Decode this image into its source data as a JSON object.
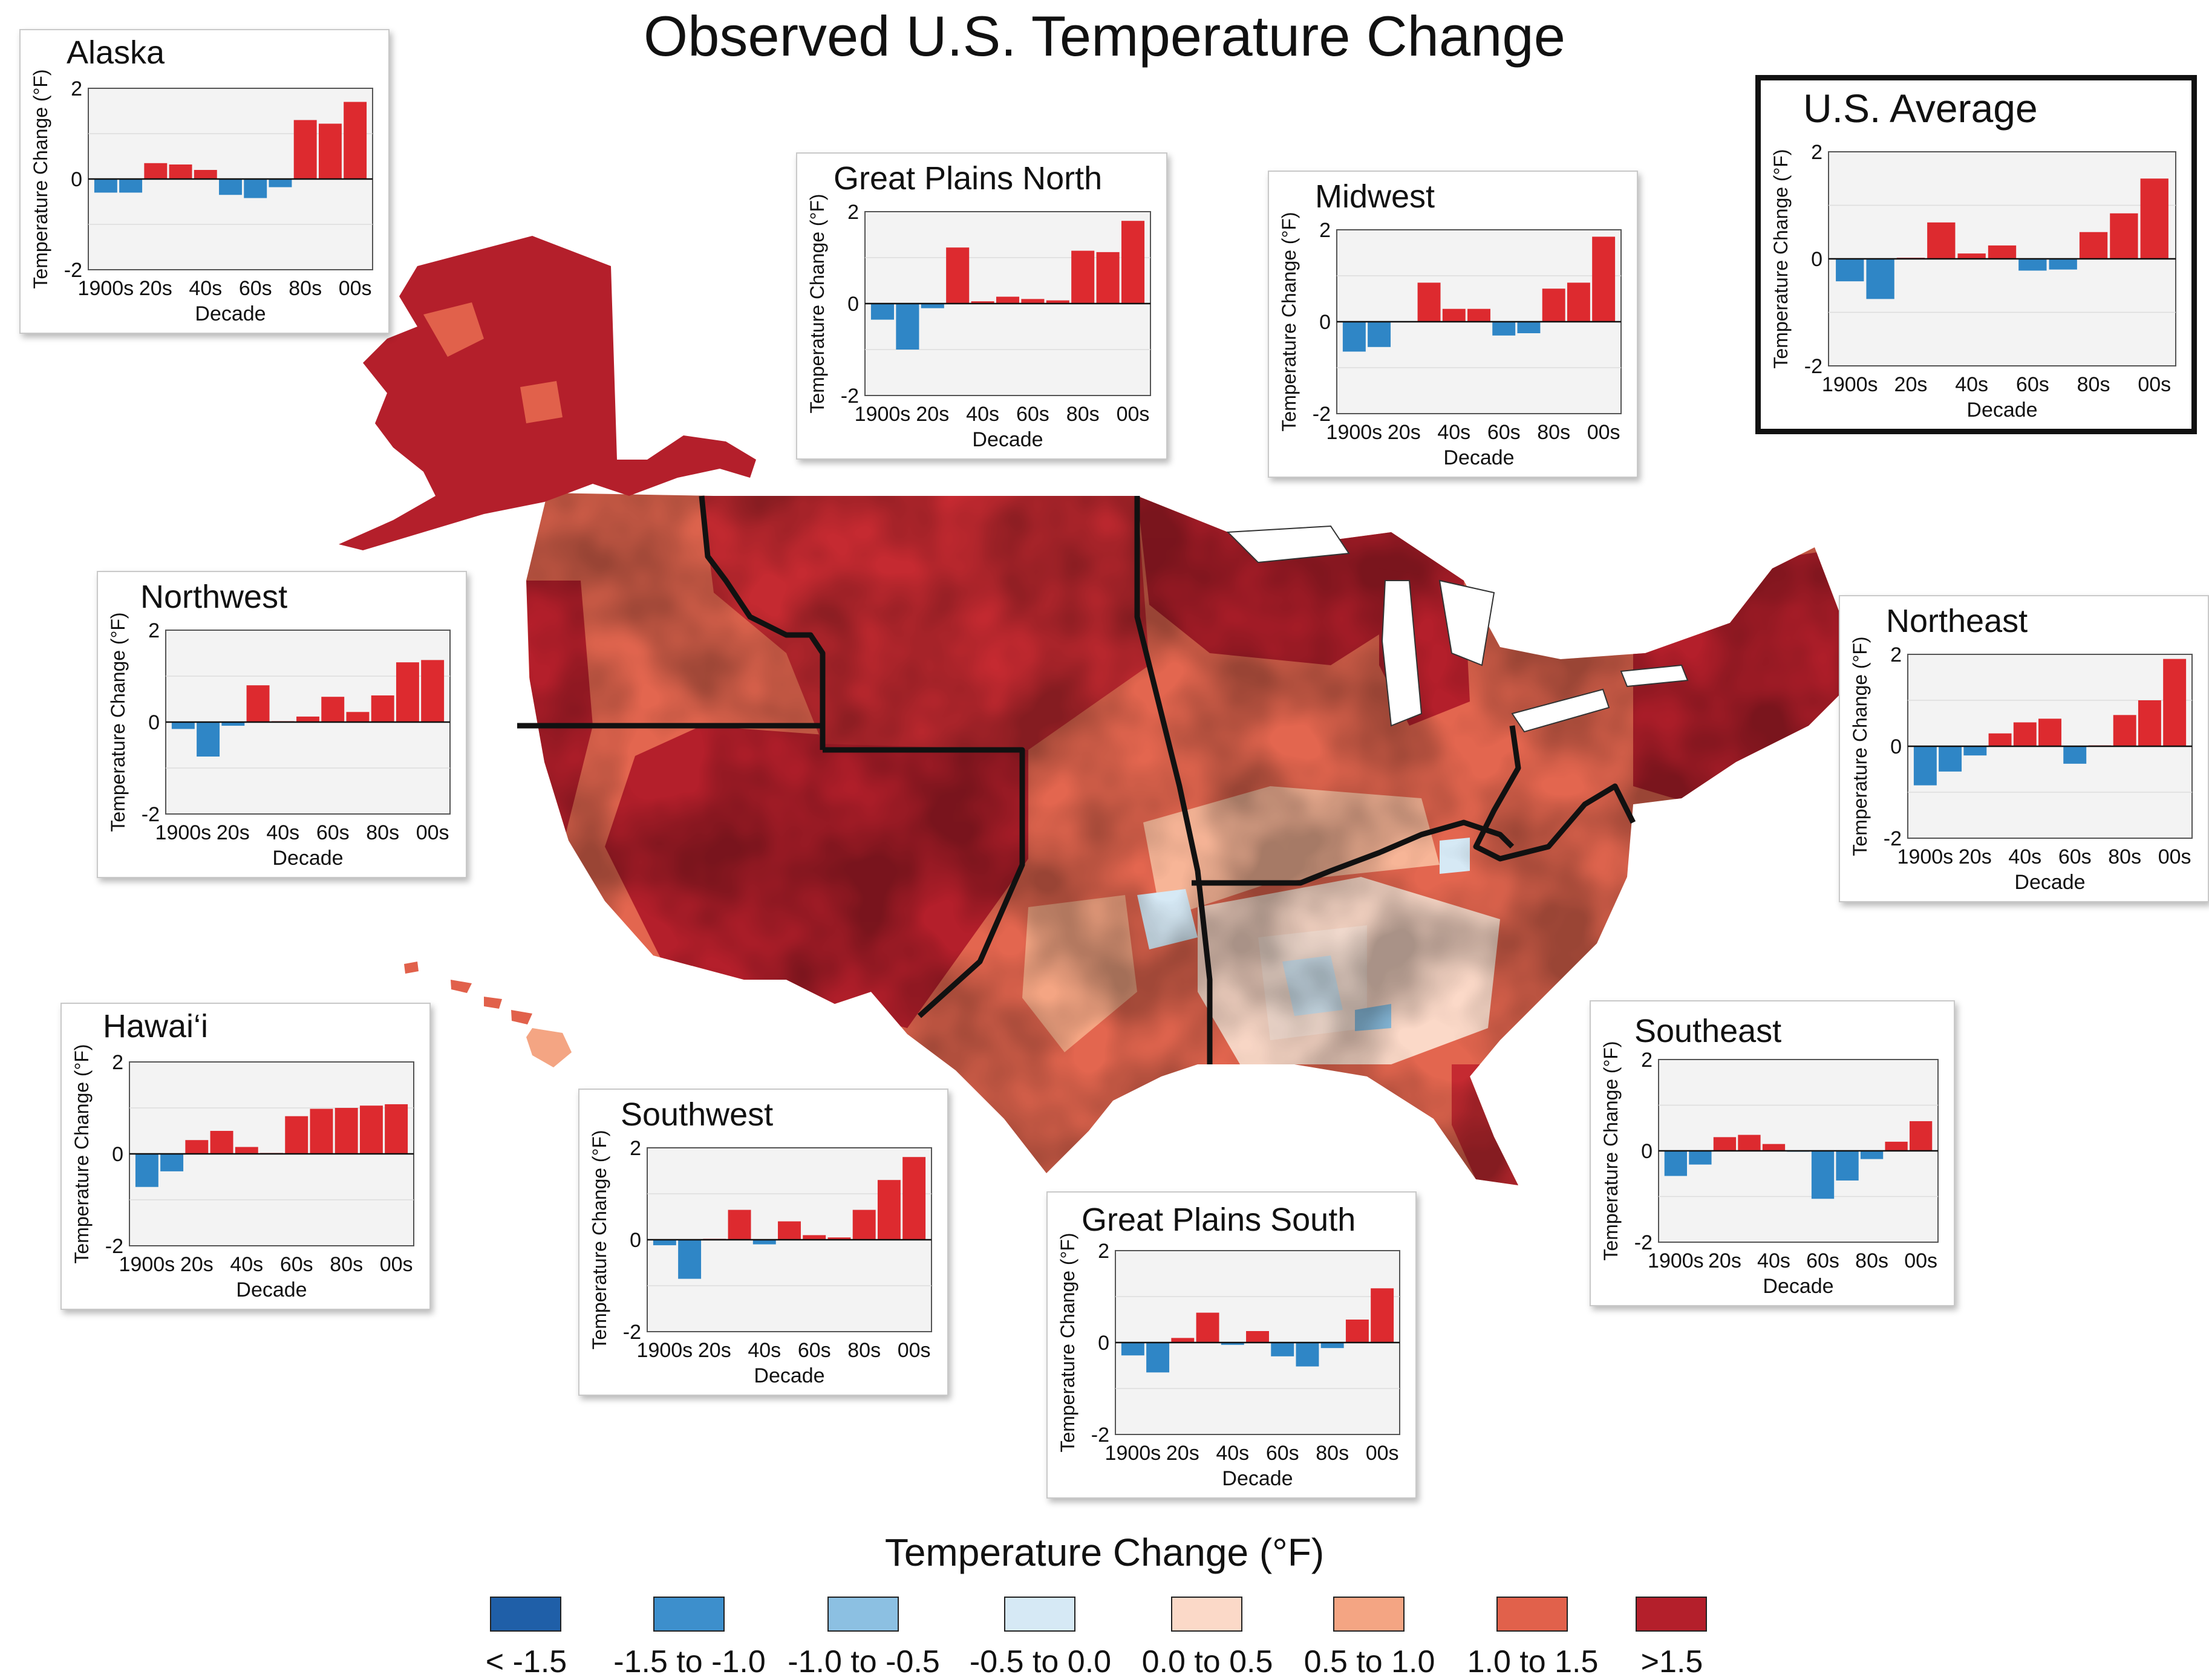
{
  "title": "Observed U.S. Temperature Change",
  "legend": {
    "title": "Temperature Change (°F)",
    "items": [
      {
        "label": "< -1.5",
        "color": "#1f5fa8"
      },
      {
        "label": "-1.5 to -1.0",
        "color": "#3d8fcc"
      },
      {
        "label": "-1.0 to -0.5",
        "color": "#8cc0e2"
      },
      {
        "label": "-0.5 to 0.0",
        "color": "#d6e9f5"
      },
      {
        "label": "0.0 to 0.5",
        "color": "#fbd9c8"
      },
      {
        "label": "0.5 to 1.0",
        "color": "#f4a583"
      },
      {
        "label": "1.0 to 1.5",
        "color": "#e1614b"
      },
      {
        "label": ">1.5",
        "color": "#b41f2b"
      }
    ]
  },
  "colors": {
    "warm": "#dd2a2f",
    "cool": "#2f86c6",
    "plot_bg": "#f3f3f3"
  },
  "chart_data": [
    {
      "type": "bar",
      "title": "Alaska",
      "categories": [
        "1900s",
        "10s",
        "20s",
        "30s",
        "40s",
        "50s",
        "60s",
        "70s",
        "80s",
        "90s",
        "00s"
      ],
      "tick_labels": [
        "1900s",
        "20s",
        "40s",
        "60s",
        "80s",
        "00s"
      ],
      "values": [
        -0.3,
        -0.3,
        0.35,
        0.32,
        0.2,
        -0.35,
        -0.42,
        -0.18,
        1.3,
        1.22,
        1.7
      ],
      "xlabel": "Decade",
      "ylabel": "Temperature Change (°F)",
      "ylim": [
        -2,
        2
      ],
      "yticks": [
        "2",
        "0",
        "-2"
      ]
    },
    {
      "type": "bar",
      "title": "Great Plains North",
      "categories": [
        "1900s",
        "10s",
        "20s",
        "30s",
        "40s",
        "50s",
        "60s",
        "70s",
        "80s",
        "90s",
        "00s"
      ],
      "tick_labels": [
        "1900s",
        "20s",
        "40s",
        "60s",
        "80s",
        "00s"
      ],
      "values": [
        -0.35,
        -1.0,
        -0.1,
        1.22,
        0.05,
        0.15,
        0.1,
        0.07,
        1.15,
        1.12,
        1.8
      ],
      "xlabel": "Decade",
      "ylabel": "Temperature Change (°F)",
      "ylim": [
        -2,
        2
      ],
      "yticks": [
        "2",
        "0",
        "-2"
      ]
    },
    {
      "type": "bar",
      "title": "Midwest",
      "categories": [
        "1900s",
        "10s",
        "20s",
        "30s",
        "40s",
        "50s",
        "60s",
        "70s",
        "80s",
        "90s",
        "00s"
      ],
      "tick_labels": [
        "1900s",
        "20s",
        "40s",
        "60s",
        "80s",
        "00s"
      ],
      "values": [
        -0.65,
        -0.55,
        0.0,
        0.85,
        0.28,
        0.28,
        -0.3,
        -0.25,
        0.72,
        0.85,
        1.85
      ],
      "xlabel": "Decade",
      "ylabel": "Temperature Change (°F)",
      "ylim": [
        -2,
        2
      ],
      "yticks": [
        "2",
        "0",
        "-2"
      ]
    },
    {
      "type": "bar",
      "title": "U.S. Average",
      "categories": [
        "1900s",
        "10s",
        "20s",
        "30s",
        "40s",
        "50s",
        "60s",
        "70s",
        "80s",
        "90s",
        "00s"
      ],
      "tick_labels": [
        "1900s",
        "20s",
        "40s",
        "60s",
        "80s",
        "00s"
      ],
      "values": [
        -0.42,
        -0.75,
        0.02,
        0.68,
        0.1,
        0.25,
        -0.22,
        -0.2,
        0.5,
        0.85,
        1.5
      ],
      "xlabel": "Decade",
      "ylabel": "Temperature Change (°F)",
      "ylim": [
        -2,
        2
      ],
      "yticks": [
        "2",
        "0",
        "-2"
      ]
    },
    {
      "type": "bar",
      "title": "Northwest",
      "categories": [
        "1900s",
        "10s",
        "20s",
        "30s",
        "40s",
        "50s",
        "60s",
        "70s",
        "80s",
        "90s",
        "00s"
      ],
      "tick_labels": [
        "1900s",
        "20s",
        "40s",
        "60s",
        "80s",
        "00s"
      ],
      "values": [
        -0.15,
        -0.75,
        -0.08,
        0.8,
        0.02,
        0.12,
        0.55,
        0.22,
        0.58,
        1.3,
        1.35
      ],
      "xlabel": "Decade",
      "ylabel": "Temperature Change (°F)",
      "ylim": [
        -2,
        2
      ],
      "yticks": [
        "2",
        "0",
        "-2"
      ]
    },
    {
      "type": "bar",
      "title": "Northeast",
      "categories": [
        "1900s",
        "10s",
        "20s",
        "30s",
        "40s",
        "50s",
        "60s",
        "70s",
        "80s",
        "90s",
        "00s"
      ],
      "tick_labels": [
        "1900s",
        "20s",
        "40s",
        "60s",
        "80s",
        "00s"
      ],
      "values": [
        -0.85,
        -0.55,
        -0.2,
        0.28,
        0.52,
        0.6,
        -0.38,
        0.02,
        0.68,
        1.0,
        1.9
      ],
      "xlabel": "Decade",
      "ylabel": "Temperature Change (°F)",
      "ylim": [
        -2,
        2
      ],
      "yticks": [
        "2",
        "0",
        "-2"
      ]
    },
    {
      "type": "bar",
      "title": "Hawai‘i",
      "categories": [
        "1900s",
        "10s",
        "20s",
        "30s",
        "40s",
        "50s",
        "60s",
        "70s",
        "80s",
        "90s",
        "00s"
      ],
      "tick_labels": [
        "1900s",
        "20s",
        "40s",
        "60s",
        "80s",
        "00s"
      ],
      "values": [
        -0.72,
        -0.38,
        0.3,
        0.5,
        0.15,
        0.02,
        0.82,
        0.98,
        1.0,
        1.05,
        1.08
      ],
      "xlabel": "Decade",
      "ylabel": "Temperature Change (°F)",
      "ylim": [
        -2,
        2
      ],
      "yticks": [
        "2",
        "0",
        "-2"
      ]
    },
    {
      "type": "bar",
      "title": "Southwest",
      "categories": [
        "1900s",
        "10s",
        "20s",
        "30s",
        "40s",
        "50s",
        "60s",
        "70s",
        "80s",
        "90s",
        "00s"
      ],
      "tick_labels": [
        "1900s",
        "20s",
        "40s",
        "60s",
        "80s",
        "00s"
      ],
      "values": [
        -0.12,
        -0.85,
        0.02,
        0.65,
        -0.1,
        0.4,
        0.1,
        0.05,
        0.65,
        1.3,
        1.8
      ],
      "xlabel": "Decade",
      "ylabel": "Temperature Change (°F)",
      "ylim": [
        -2,
        2
      ],
      "yticks": [
        "2",
        "0",
        "-2"
      ]
    },
    {
      "type": "bar",
      "title": "Great Plains South",
      "categories": [
        "1900s",
        "10s",
        "20s",
        "30s",
        "40s",
        "50s",
        "60s",
        "70s",
        "80s",
        "90s",
        "00s"
      ],
      "tick_labels": [
        "1900s",
        "20s",
        "40s",
        "60s",
        "80s",
        "00s"
      ],
      "values": [
        -0.28,
        -0.65,
        0.1,
        0.65,
        -0.05,
        0.25,
        -0.3,
        -0.52,
        -0.12,
        0.5,
        1.18
      ],
      "xlabel": "Decade",
      "ylabel": "Temperature Change (°F)",
      "ylim": [
        -2,
        2
      ],
      "yticks": [
        "2",
        "0",
        "-2"
      ]
    },
    {
      "type": "bar",
      "title": "Southeast",
      "categories": [
        "1900s",
        "10s",
        "20s",
        "30s",
        "40s",
        "50s",
        "60s",
        "70s",
        "80s",
        "90s",
        "00s"
      ],
      "tick_labels": [
        "1900s",
        "20s",
        "40s",
        "60s",
        "80s",
        "00s"
      ],
      "values": [
        -0.55,
        -0.3,
        0.3,
        0.35,
        0.15,
        -0.02,
        -1.05,
        -0.65,
        -0.18,
        0.2,
        0.65
      ],
      "xlabel": "Decade",
      "ylabel": "Temperature Change (°F)",
      "ylim": [
        -2,
        2
      ],
      "yticks": [
        "2",
        "0",
        "-2"
      ]
    }
  ]
}
